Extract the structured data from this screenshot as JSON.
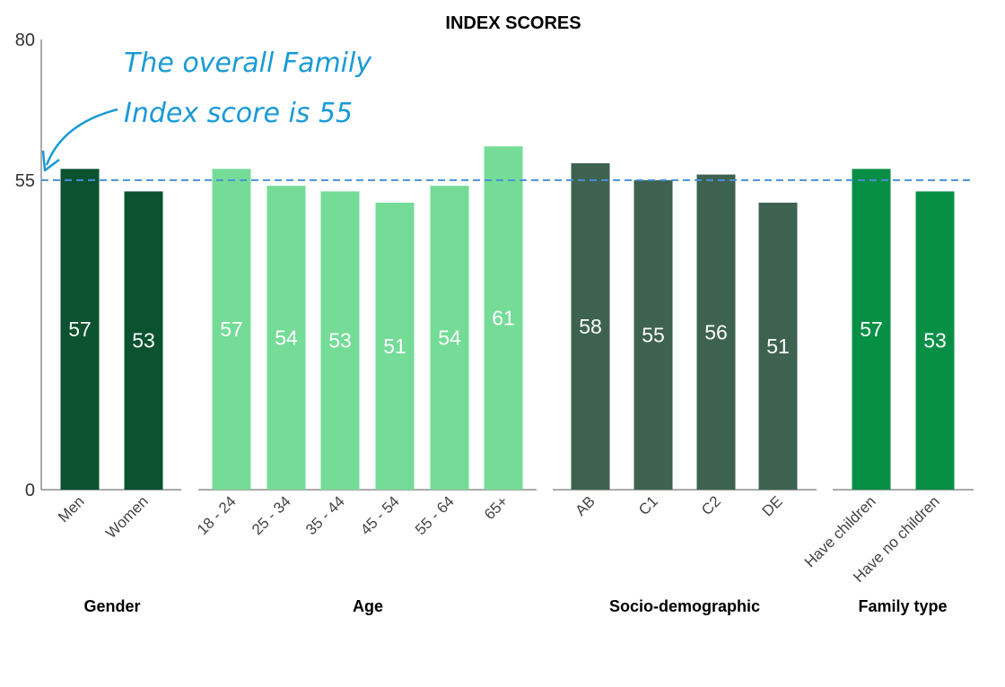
{
  "chart_data": {
    "type": "bar",
    "title": "INDEX SCORES",
    "ylim": [
      0,
      80
    ],
    "yticks": [
      "0",
      "55",
      "80"
    ],
    "reference_line": {
      "value": 55,
      "style": "dashed",
      "color": "#4a8fd4"
    },
    "annotation": {
      "lines": [
        "The overall Family",
        "Index score is 55"
      ],
      "color": "#1a9ad6"
    },
    "groups": [
      {
        "name": "Gender",
        "color": "#0a5230",
        "categories": [
          "Men",
          "Women"
        ],
        "values": [
          57,
          53
        ],
        "labels": [
          "57",
          "53"
        ]
      },
      {
        "name": "Age",
        "color": "#74dc97",
        "categories": [
          "18 - 24",
          "25 - 34",
          "35 - 44",
          "45 - 54",
          "55 - 64",
          "65+"
        ],
        "values": [
          57,
          54,
          53,
          51,
          54,
          61
        ],
        "labels": [
          "57",
          "54",
          "53",
          "51",
          "54",
          "61"
        ]
      },
      {
        "name": "Socio-demographic",
        "color": "#3e6250",
        "categories": [
          "AB",
          "C1",
          "C2",
          "DE"
        ],
        "values": [
          58,
          55,
          56,
          51
        ],
        "labels": [
          "58",
          "55",
          "56",
          "51"
        ]
      },
      {
        "name": "Family type",
        "color": "#088f46",
        "categories": [
          "Have children",
          "Have no children"
        ],
        "values": [
          57,
          53
        ],
        "labels": [
          "57",
          "53"
        ]
      }
    ]
  }
}
